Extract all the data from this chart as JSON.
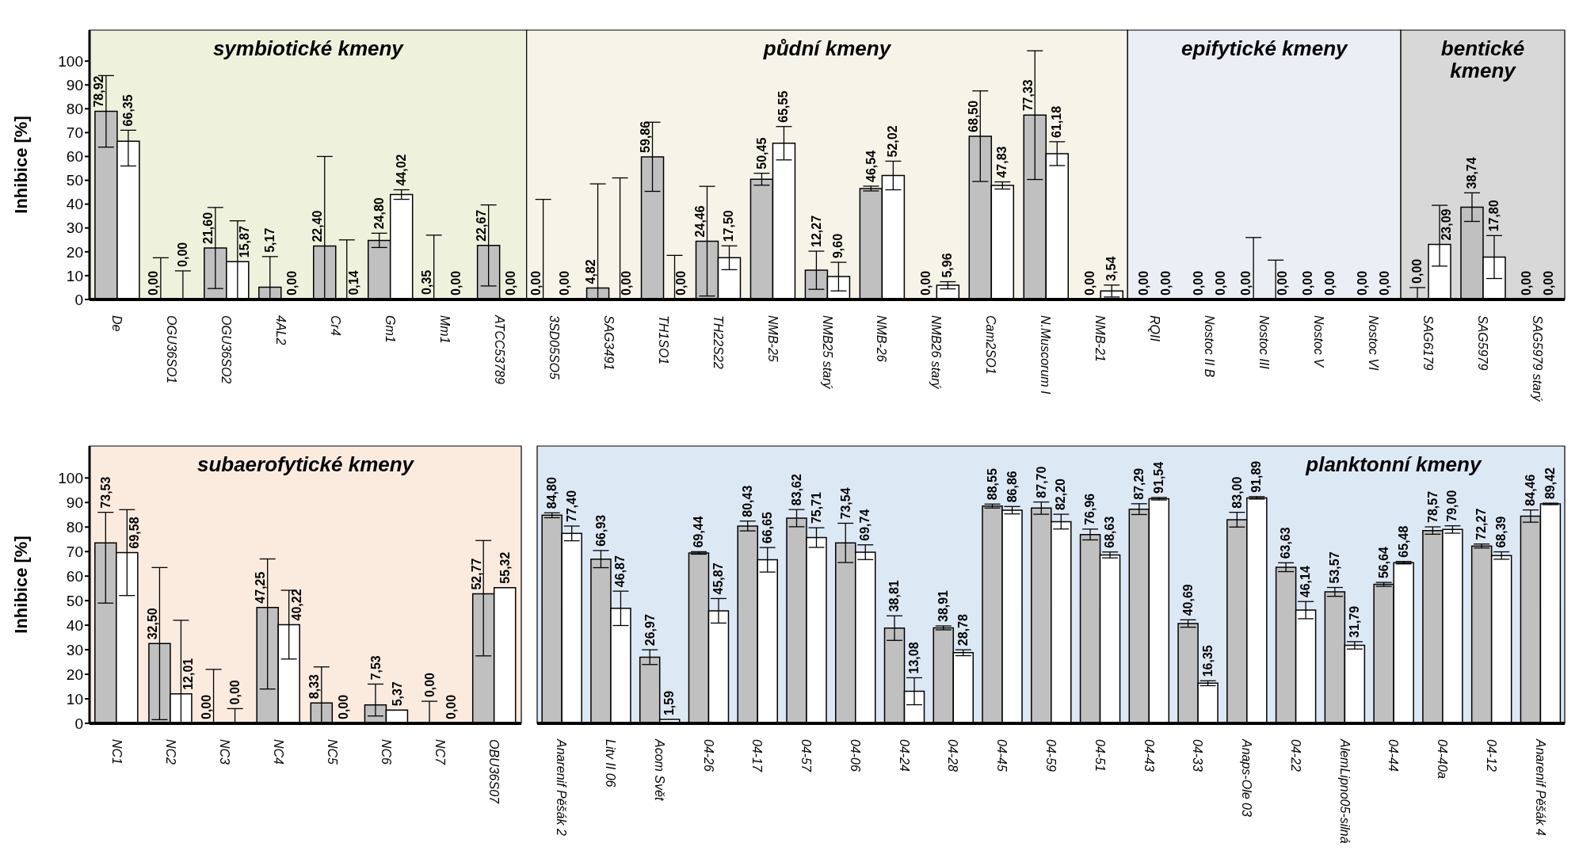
{
  "chart_data": [
    {
      "type": "bar",
      "ylabel": "Inhibice [%]",
      "ylim": [
        0,
        113
      ],
      "yticks": [
        0,
        10,
        20,
        30,
        40,
        50,
        60,
        70,
        80,
        90,
        100
      ],
      "grid": false,
      "legend": false,
      "categories": [
        "De",
        "OGU36SO1",
        "OGU36SO2",
        "4AL2",
        "Cr4",
        "Gm1",
        "Mm1",
        "ATCC53789",
        "3SD05SO5",
        "SAG3491",
        "TH1SO1",
        "TH22S22",
        "NMB-25",
        "NMB25 starý",
        "NMB-26",
        "NMB26 starý",
        "Cam2SO1",
        "N.Muscorum I",
        "NMB-21",
        "RQII",
        "Nostoc II B",
        "Nostoc III",
        "Nostoc V",
        "Nostoc VI",
        "SAG6179",
        "SAG5979",
        "SAG5979 starý"
      ],
      "series": [
        {
          "color": "#c0c0c0",
          "values": [
            78.92,
            0,
            21.6,
            5.17,
            22.4,
            24.8,
            0.35,
            22.67,
            0,
            4.82,
            59.86,
            24.46,
            50.45,
            12.27,
            46.54,
            0,
            68.5,
            77.33,
            0,
            0,
            0,
            0,
            0,
            0,
            0,
            38.74,
            0
          ],
          "errors": [
            15,
            [
              0,
              17.5
            ],
            17,
            [
              0,
              18
            ],
            [
              0,
              60
            ],
            3,
            [
              0,
              27
            ],
            17,
            [
              0,
              42
            ],
            [
              0,
              48.5
            ],
            14.5,
            23,
            2.5,
            8,
            1,
            null,
            19,
            27,
            null,
            null,
            null,
            [
              0,
              26
            ],
            null,
            null,
            [
              0,
              5
            ],
            6,
            null
          ],
          "value_labels": [
            "78,92",
            "0,00",
            "21,60",
            "5,17",
            "22,40",
            "24,80",
            "0,35",
            "22,67",
            "0,00",
            "4,82",
            "59,86",
            "24,46",
            "50,45",
            "12,27",
            "46,54",
            "0,00",
            "68,50",
            "77,33",
            "0,00",
            "0,00",
            "0,00",
            "0,00",
            "0,00",
            "0,00",
            "0,00",
            "38,74",
            "0,00"
          ]
        },
        {
          "color": "#ffffff",
          "values": [
            66.35,
            0,
            15.87,
            0,
            0.14,
            44.02,
            0,
            0,
            0,
            0,
            0,
            17.5,
            65.55,
            9.6,
            52.02,
            5.96,
            47.83,
            61.18,
            3.54,
            0,
            0,
            0,
            0,
            0,
            23.09,
            17.8,
            0
          ],
          "errors": [
            [
              56,
              71
            ],
            [
              0,
              12
            ],
            [
              0,
              33
            ],
            null,
            [
              0,
              25
            ],
            2,
            null,
            null,
            null,
            [
              0,
              51
            ],
            [
              0,
              18.5
            ],
            5,
            7,
            6,
            6,
            1.5,
            1.5,
            5,
            2.5,
            null,
            null,
            [
              0,
              16.5
            ],
            null,
            null,
            [
              14,
              39.5
            ],
            9,
            null
          ],
          "value_labels": [
            "66,35",
            "0,00",
            "15,87",
            "0,00",
            "0,14",
            "44,02",
            "0,00",
            "0,00",
            "0,00",
            "0,00",
            "0,00",
            "17,50",
            "65,55",
            "9,60",
            "52,02",
            "5,96",
            "47,83",
            "61,18",
            "3,54",
            "0,00",
            "0,00",
            "0,00",
            "0,00",
            "0,00",
            "23,09",
            "17,80",
            "0,00"
          ]
        }
      ],
      "bands": [
        {
          "axis": "x",
          "from": "De",
          "to": "ATCC53789",
          "label": "symbiotické kmeny",
          "color": "#eef2dc"
        },
        {
          "axis": "x",
          "from": "3SD05SO5",
          "to": "NMB-21",
          "label": "půdní kmeny",
          "color": "#f6f4e8"
        },
        {
          "axis": "x",
          "from": "RQII",
          "to": "Nostoc VI",
          "label": "epifytické kmeny",
          "color": "#eceef5"
        },
        {
          "axis": "x",
          "from": "SAG6179",
          "to": "SAG5979 starý",
          "label": "bentické kmeny",
          "color": "#d8d8d8"
        }
      ]
    },
    {
      "type": "bar",
      "ylabel": "Inhibice [%]",
      "ylim": [
        0,
        113
      ],
      "yticks": [
        0,
        10,
        20,
        30,
        40,
        50,
        60,
        70,
        80,
        90,
        100
      ],
      "grid": false,
      "legend": false,
      "categories": [
        "NC1",
        "NC2",
        "NC3",
        "NC4",
        "NC5",
        "NC6",
        "NC7",
        "OBU36S07"
      ],
      "series": [
        {
          "color": "#c0c0c0",
          "values": [
            73.53,
            32.5,
            0,
            47.25,
            8.33,
            7.53,
            0,
            52.77
          ],
          "errors": [
            [
              49,
              86
            ],
            [
              1.5,
              63.5
            ],
            [
              0,
              22
            ],
            [
              14,
              67
            ],
            [
              0,
              23
            ],
            [
              3,
              16
            ],
            [
              0,
              9
            ],
            [
              27.5,
              74.5
            ]
          ],
          "value_labels": [
            "73,53",
            "32,50",
            "0,00",
            "47,25",
            "8,33",
            "7,53",
            "0,00",
            "52,77"
          ]
        },
        {
          "color": "#ffffff",
          "values": [
            69.58,
            12.01,
            0,
            40.22,
            0,
            5.37,
            0,
            55.32
          ],
          "errors": [
            17.5,
            [
              0,
              42
            ],
            [
              0,
              6
            ],
            14,
            null,
            null,
            null,
            null
          ],
          "value_labels": [
            "69,58",
            "12,01",
            "0,00",
            "40,22",
            "0,00",
            "5,37",
            "0,00",
            "55,32"
          ]
        }
      ],
      "bands": [
        {
          "axis": "x",
          "from": "NC1",
          "to": "OBU36S07",
          "label": "subaerofytické kmeny",
          "color": "#fbebdf"
        }
      ]
    },
    {
      "type": "bar",
      "ylim": [
        0,
        113
      ],
      "tick_labels": "x",
      "grid": false,
      "legend": false,
      "categories": [
        "Anarenif Pěšák 2",
        "Litv II 06",
        "Acom Svět",
        "04-26",
        "04-17",
        "04-57",
        "04-06",
        "04-24",
        "04-28",
        "04-45",
        "04-59",
        "04-51",
        "04-43",
        "04-33",
        "Anaps-Ole 03",
        "04-22",
        "AlemLipno05-silná",
        "04-44",
        "04-40a",
        "04-12",
        "Anarenif Pěšák 4"
      ],
      "series": [
        {
          "color": "#c0c0c0",
          "values": [
            84.8,
            66.93,
            26.97,
            69.44,
            80.43,
            83.62,
            73.54,
            38.81,
            38.91,
            88.55,
            87.7,
            76.96,
            87.29,
            40.69,
            83.0,
            63.63,
            53.57,
            56.64,
            78.57,
            72.27,
            84.46
          ],
          "errors": [
            1,
            3.5,
            3,
            0.5,
            2,
            3.5,
            8,
            5,
            0.8,
            0.8,
            2.5,
            2.2,
            2.2,
            1.5,
            3,
            1.8,
            1.8,
            0.8,
            1.5,
            0.8,
            2.5
          ],
          "value_labels": [
            "84,80",
            "66,93",
            "26,97",
            "69,44",
            "80,43",
            "83,62",
            "73,54",
            "38,81",
            "38,91",
            "88,55",
            "87,70",
            "76,96",
            "87,29",
            "40,69",
            "83,00",
            "63,63",
            "53,57",
            "56,64",
            "78,57",
            "72,27",
            "84,46"
          ]
        },
        {
          "color": "#ffffff",
          "values": [
            77.4,
            46.87,
            1.59,
            45.87,
            66.65,
            75.71,
            69.74,
            13.08,
            28.78,
            86.86,
            82.2,
            68.63,
            91.54,
            16.35,
            91.89,
            46.14,
            31.79,
            65.48,
            79.0,
            68.39,
            89.42
          ],
          "errors": [
            3,
            7,
            null,
            5,
            5,
            4,
            3,
            5.5,
            1.2,
            1.5,
            3,
            1.2,
            0.5,
            1,
            0.5,
            3.5,
            1.5,
            0.5,
            1.5,
            1.5,
            0.3
          ],
          "value_labels": [
            "77,40",
            "46,87",
            "1,59",
            "45,87",
            "66,65",
            "75,71",
            "69,74",
            "13,08",
            "28,78",
            "86,86",
            "82,20",
            "68,63",
            "91,54",
            "16,35",
            "91,89",
            "46,14",
            "31,79",
            "65,48",
            "79,00",
            "68,39",
            "89,42"
          ]
        }
      ],
      "bands": [
        {
          "axis": "x",
          "from": "Anarenif Pěšák 2",
          "to": "Anarenif Pěšák 4",
          "label": "planktonní kmeny",
          "color": "#dde8f5"
        }
      ]
    }
  ]
}
